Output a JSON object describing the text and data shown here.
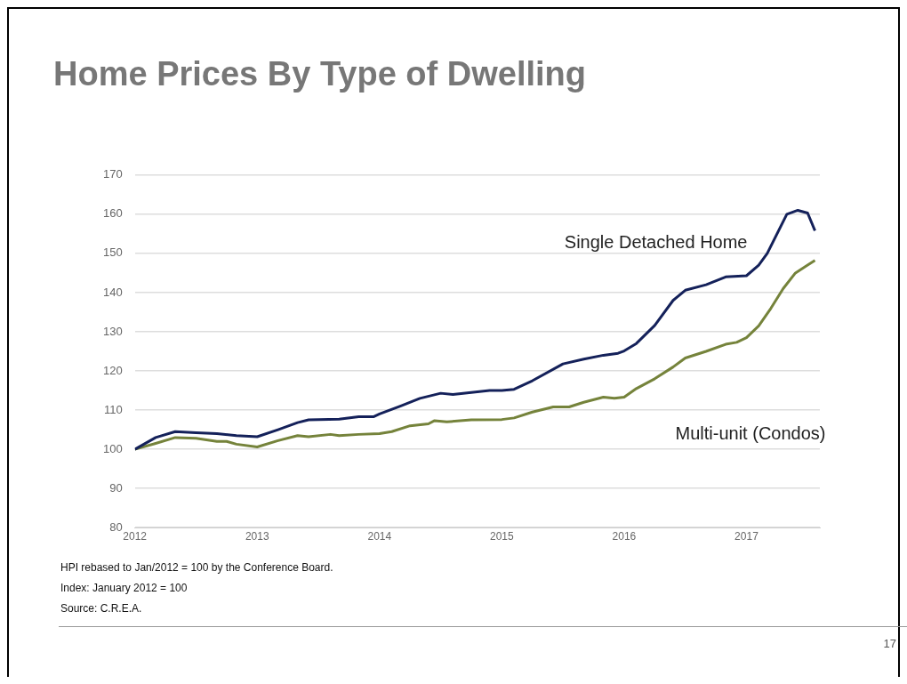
{
  "chart_data": {
    "type": "line",
    "title": "Home Prices By Type of Dwelling",
    "series": [
      {
        "name": "Single Detached Home",
        "color": "#14215a",
        "x": [
          2012,
          2012.17,
          2012.33,
          2012.5,
          2012.67,
          2012.83,
          2013,
          2013.17,
          2013.33,
          2013.42,
          2013.67,
          2013.83,
          2013.95,
          2014,
          2014.17,
          2014.33,
          2014.5,
          2014.6,
          2014.75,
          2014.9,
          2015,
          2015.1,
          2015.25,
          2015.5,
          2015.67,
          2015.83,
          2015.95,
          2016,
          2016.1,
          2016.25,
          2016.4,
          2016.5,
          2016.67,
          2016.83,
          2017,
          2017.1,
          2017.17,
          2017.33,
          2017.42,
          2017.5,
          2017.56
        ],
        "values": [
          100,
          103,
          104.5,
          104.2,
          104,
          103.5,
          103.2,
          105,
          106.8,
          107.5,
          107.7,
          108.3,
          108.3,
          109,
          111,
          113,
          114.3,
          114,
          114.5,
          115,
          115,
          115.3,
          117.5,
          121.8,
          123,
          124,
          124.5,
          125.1,
          127,
          131.6,
          138,
          140.6,
          142,
          144,
          144.3,
          147,
          150,
          160,
          161,
          160.3,
          155.8
        ]
      },
      {
        "name": "Multi-unit (Condos)",
        "color": "#75833b",
        "x": [
          2012,
          2012.17,
          2012.33,
          2012.5,
          2012.67,
          2012.75,
          2012.83,
          2013,
          2013.17,
          2013.33,
          2013.42,
          2013.6,
          2013.67,
          2013.83,
          2014,
          2014.1,
          2014.25,
          2014.4,
          2014.45,
          2014.55,
          2014.75,
          2015,
          2015.1,
          2015.25,
          2015.42,
          2015.55,
          2015.67,
          2015.83,
          2015.92,
          2016,
          2016.1,
          2016.25,
          2016.4,
          2016.5,
          2016.67,
          2016.83,
          2016.92,
          2017,
          2017.1,
          2017.2,
          2017.3,
          2017.4,
          2017.5,
          2017.56
        ],
        "values": [
          100,
          101.5,
          103,
          102.8,
          102,
          102,
          101.3,
          100.6,
          102.2,
          103.5,
          103.2,
          103.8,
          103.5,
          103.8,
          104,
          104.5,
          106,
          106.5,
          107.3,
          107,
          107.5,
          107.6,
          108,
          109.5,
          110.8,
          110.8,
          112,
          113.3,
          113,
          113.3,
          115.5,
          118,
          121,
          123.3,
          125,
          126.8,
          127.3,
          128.5,
          131.5,
          136,
          141,
          145,
          147,
          148.2
        ]
      }
    ],
    "xlim": [
      2012,
      2017.6
    ],
    "xticks": [
      2012,
      2013,
      2014,
      2015,
      2016,
      2017
    ],
    "ylim": [
      80,
      170
    ],
    "yticks": [
      80,
      90,
      100,
      110,
      120,
      130,
      140,
      150,
      160,
      170
    ],
    "grid": "y",
    "legend": false,
    "annotations": [
      "HPI rebased to Jan/2012 = 100  by the Conference Board.",
      "Index: January 2012 = 100",
      "Source: C.R.E.A.",
      "17"
    ]
  }
}
